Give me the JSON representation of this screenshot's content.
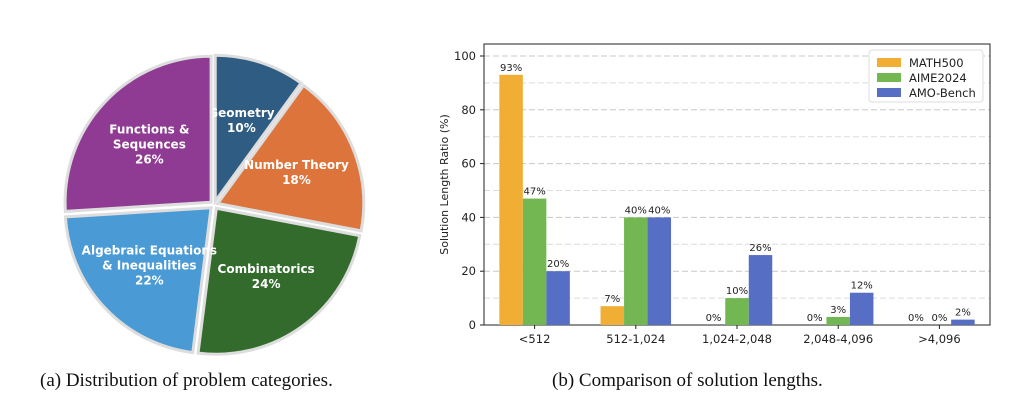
{
  "captions": {
    "a": "(a) Distribution of problem categories.",
    "b": "(b) Comparison of solution lengths."
  },
  "chart_data": [
    {
      "type": "pie",
      "title": "",
      "slices": [
        {
          "lines": [
            "Geometry",
            "10%"
          ],
          "value": 10,
          "color": "#2e5c82"
        },
        {
          "lines": [
            "Number Theory",
            "18%"
          ],
          "value": 18,
          "color": "#dd743b"
        },
        {
          "lines": [
            "Combinatorics",
            "24%"
          ],
          "value": 24,
          "color": "#326b2c"
        },
        {
          "lines": [
            "Algebraic Equations",
            "& Inequalities",
            "22%"
          ],
          "value": 22,
          "color": "#4a9ad6"
        },
        {
          "lines": [
            "Functions &",
            "Sequences",
            "26%"
          ],
          "value": 26,
          "color": "#8f3a93"
        }
      ]
    },
    {
      "type": "bar",
      "title": "",
      "xlabel": "",
      "ylabel": "Solution Length Ratio (%)",
      "ylim": [
        0,
        100
      ],
      "yticks": [
        0,
        20,
        40,
        60,
        80,
        100
      ],
      "grid": true,
      "legend_position": "top-right",
      "categories": [
        "<512",
        "512-1,024",
        "1,024-2,048",
        "2,048-4,096",
        ">4,096"
      ],
      "series": [
        {
          "name": "MATH500",
          "color": "#f0ae35",
          "values": [
            93,
            7,
            0,
            0,
            0
          ],
          "labels": [
            "93%",
            "7%",
            "0%",
            "0%",
            "0%"
          ]
        },
        {
          "name": "AIME2024",
          "color": "#73b752",
          "values": [
            47,
            40,
            10,
            3,
            0
          ],
          "labels": [
            "47%",
            "40%",
            "10%",
            "3%",
            "0%"
          ]
        },
        {
          "name": "AMO-Bench",
          "color": "#566ec3",
          "values": [
            20,
            40,
            26,
            12,
            2
          ],
          "labels": [
            "20%",
            "40%",
            "26%",
            "12%",
            "2%"
          ]
        }
      ]
    }
  ]
}
